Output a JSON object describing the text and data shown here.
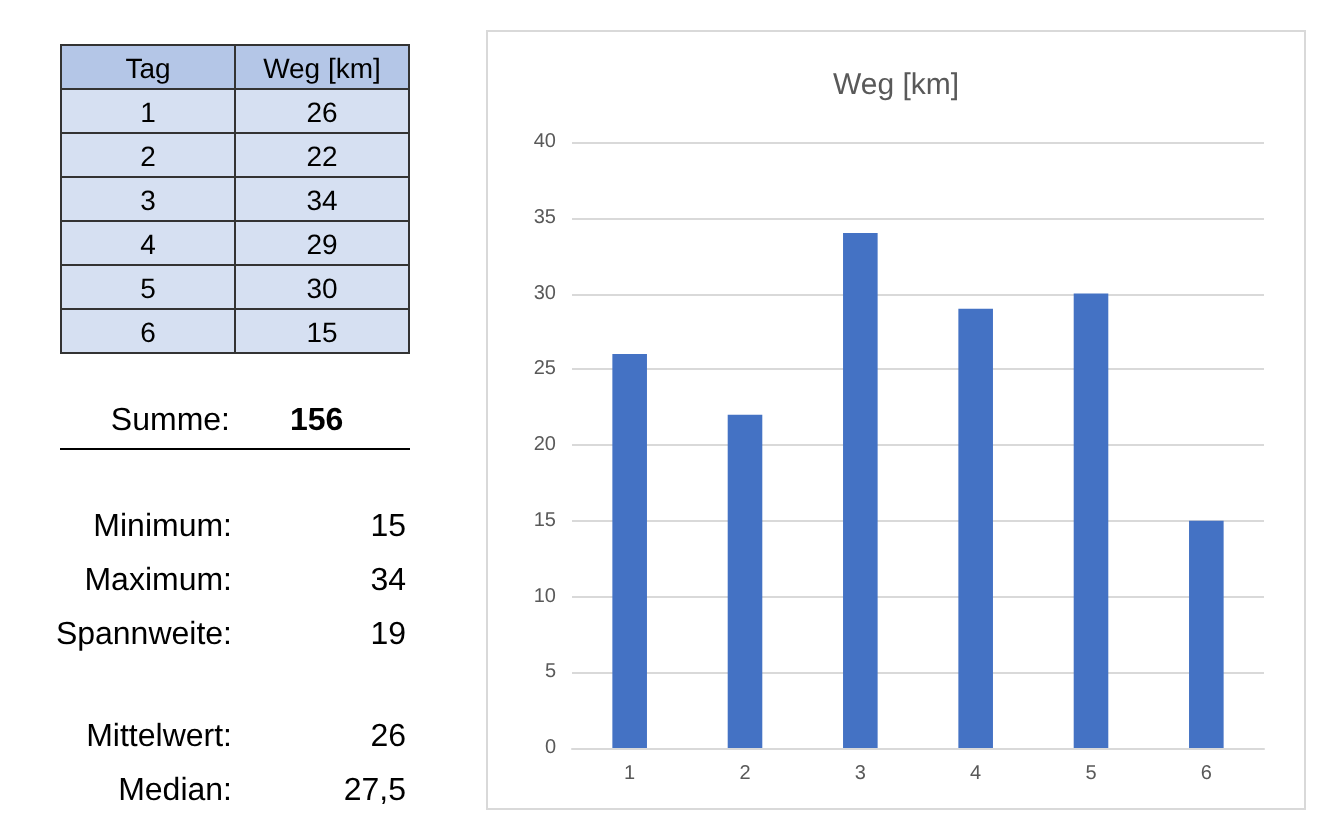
{
  "chart_data": {
    "type": "bar",
    "title": "Weg [km]",
    "categories": [
      "1",
      "2",
      "3",
      "4",
      "5",
      "6"
    ],
    "values": [
      26,
      22,
      34,
      29,
      30,
      15
    ],
    "color": "#4472c4",
    "ylim": [
      0,
      40
    ],
    "yticks": [
      0,
      5,
      10,
      15,
      20,
      25,
      30,
      35,
      40
    ],
    "grid": "y",
    "annotations": [
      "Tag",
      "Weg [km]",
      "1",
      "26",
      "2",
      "22",
      "3",
      "34",
      "4",
      "29",
      "5",
      "30",
      "6",
      "15",
      "Summe:",
      "156",
      "Minimum:",
      "15",
      "Maximum:",
      "34",
      "Spannweite:",
      "19",
      "Mittelwert:",
      "26",
      "Median:",
      "27,5"
    ]
  }
}
